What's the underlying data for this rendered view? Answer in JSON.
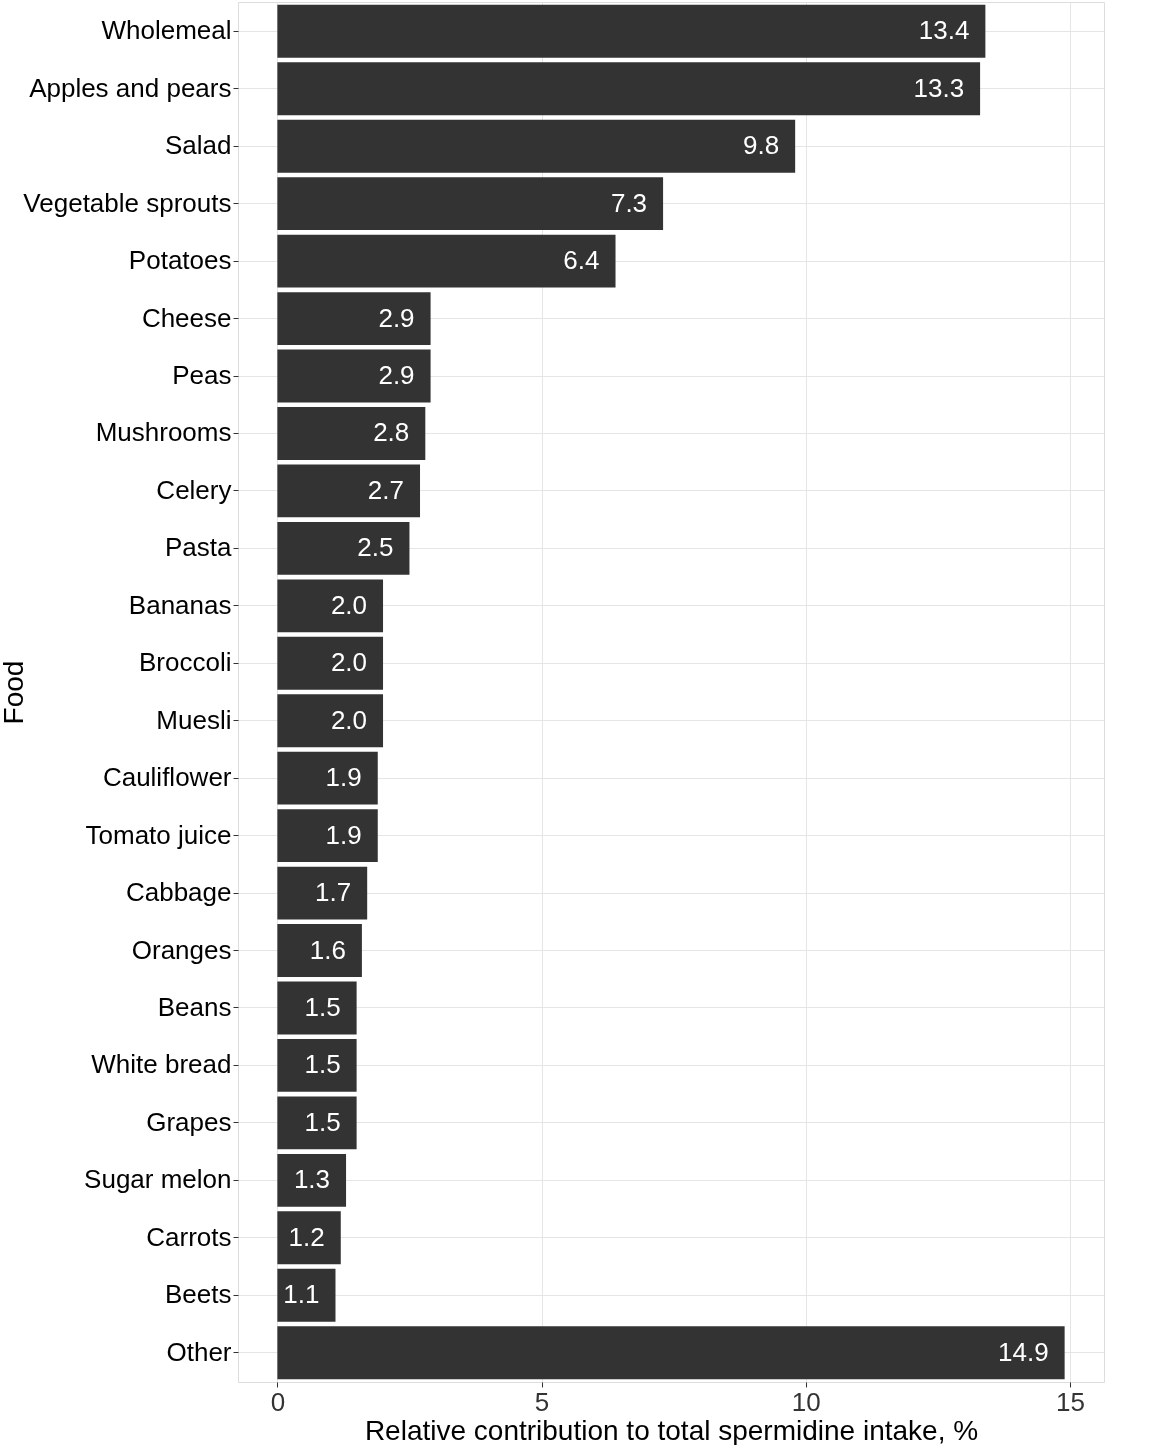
{
  "chart_data": {
    "type": "bar",
    "orientation": "horizontal",
    "xlabel": "Relative contribution to total spermidine intake, %",
    "ylabel": "Food",
    "categories": [
      "Wholemeal",
      "Apples and pears",
      "Salad",
      "Vegetable sprouts",
      "Potatoes",
      "Cheese",
      "Peas",
      "Mushrooms",
      "Celery",
      "Pasta",
      "Bananas",
      "Broccoli",
      "Muesli",
      "Cauliflower",
      "Tomato juice",
      "Cabbage",
      "Oranges",
      "Beans",
      "White bread",
      "Grapes",
      "Sugar melon",
      "Carrots",
      "Beets",
      "Other"
    ],
    "values": [
      13.4,
      13.3,
      9.8,
      7.3,
      6.4,
      2.9,
      2.9,
      2.8,
      2.7,
      2.5,
      2.0,
      2.0,
      2.0,
      1.9,
      1.9,
      1.7,
      1.6,
      1.5,
      1.5,
      1.5,
      1.3,
      1.2,
      1.1,
      14.9
    ],
    "value_labels": [
      "13.4",
      "13.3",
      "9.8",
      "7.3",
      "6.4",
      "2.9",
      "2.9",
      "2.8",
      "2.7",
      "2.5",
      "2.0",
      "2.0",
      "2.0",
      "1.9",
      "1.9",
      "1.7",
      "1.6",
      "1.5",
      "1.5",
      "1.5",
      "1.3",
      "1.2",
      "1.1",
      "14.9"
    ],
    "color": "#333333",
    "xlim": [
      -0.745,
      15.645
    ],
    "xticks": [
      0,
      5,
      10,
      15
    ],
    "grid": true
  }
}
